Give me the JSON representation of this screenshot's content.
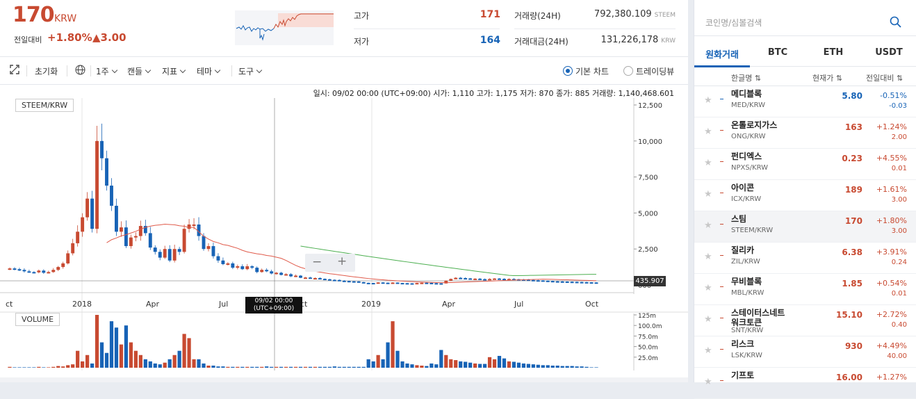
{
  "header": {
    "price": "170",
    "unit": "KRW",
    "change_label": "전일대비",
    "change_pct": "+1.80%",
    "change_abs": "▲3.00",
    "high_label": "고가",
    "high_value": "171",
    "low_label": "저가",
    "low_value": "164",
    "volume_label": "거래량(24H)",
    "volume_value": "792,380.109",
    "volume_unit": "STEEM",
    "amount_label": "거래대금(24H)",
    "amount_value": "131,226,178",
    "amount_unit": "KRW"
  },
  "toolbar": {
    "reset": "초기화",
    "interval": "1주",
    "candle": "캔들",
    "indicator": "지표",
    "theme": "테마",
    "tools": "도구",
    "basic_chart": "기본 차트",
    "trading_view": "트레이딩뷰"
  },
  "chart": {
    "ohlc_text": "일시: 09/02 00:00 (UTC+09:00) 시가: 1,110 고가: 1,175 저가: 870 종가: 885 거래량: 1,140,468.601",
    "pair_label": "STEEM/KRW",
    "volume_label": "VOLUME",
    "price_ticks": [
      "12,500",
      "10,000",
      "7,500",
      "5,000",
      "2,500",
      "000"
    ],
    "volume_ticks": [
      "125m",
      "100.0m",
      "75.0m",
      "50.0m",
      "25.0m"
    ],
    "x_labels": [
      "ct",
      "2018",
      "Apr",
      "Jul",
      "ct",
      "2019",
      "Apr",
      "Jul",
      "Oct"
    ],
    "crosshair_label_1": "09/02 00:00",
    "crosshair_label_2": "(UTC+09:00)",
    "current_price_tag": "435.907",
    "zoom_out": "−",
    "zoom_in": "+",
    "colors": {
      "up": "#c84a31",
      "down": "#1763b6"
    }
  },
  "market": {
    "search_placeholder": "코인명/심볼검색",
    "tabs": [
      "원화거래",
      "BTC",
      "ETH",
      "USDT"
    ],
    "col_name": "한글명 ⇅",
    "col_price": "현재가 ⇅",
    "col_change": "전일대비 ⇅",
    "rows": [
      {
        "name": "메디블록",
        "symbol": "MED/KRW",
        "price": "5.80",
        "pct": "-0.51%",
        "abs": "-0.03",
        "dir": "dn"
      },
      {
        "name": "온톨로지가스",
        "symbol": "ONG/KRW",
        "price": "163",
        "pct": "+1.24%",
        "abs": "2.00",
        "dir": "up"
      },
      {
        "name": "펀디엑스",
        "symbol": "NPXS/KRW",
        "price": "0.23",
        "pct": "+4.55%",
        "abs": "0.01",
        "dir": "up"
      },
      {
        "name": "아이콘",
        "symbol": "ICX/KRW",
        "price": "189",
        "pct": "+1.61%",
        "abs": "3.00",
        "dir": "up"
      },
      {
        "name": "스팀",
        "symbol": "STEEM/KRW",
        "price": "170",
        "pct": "+1.80%",
        "abs": "3.00",
        "dir": "up"
      },
      {
        "name": "질리카",
        "symbol": "ZIL/KRW",
        "price": "6.38",
        "pct": "+3.91%",
        "abs": "0.24",
        "dir": "up"
      },
      {
        "name": "무비블록",
        "symbol": "MBL/KRW",
        "price": "1.85",
        "pct": "+0.54%",
        "abs": "0.01",
        "dir": "up"
      },
      {
        "name": "스테이터스네트워크토큰",
        "symbol": "SNT/KRW",
        "price": "15.10",
        "pct": "+2.72%",
        "abs": "0.40",
        "dir": "up"
      },
      {
        "name": "리스크",
        "symbol": "LSK/KRW",
        "price": "930",
        "pct": "+4.49%",
        "abs": "40.00",
        "dir": "up"
      },
      {
        "name": "기프토",
        "symbol": "",
        "price": "16.00",
        "pct": "+1.27%",
        "abs": "",
        "dir": "up"
      }
    ]
  }
}
